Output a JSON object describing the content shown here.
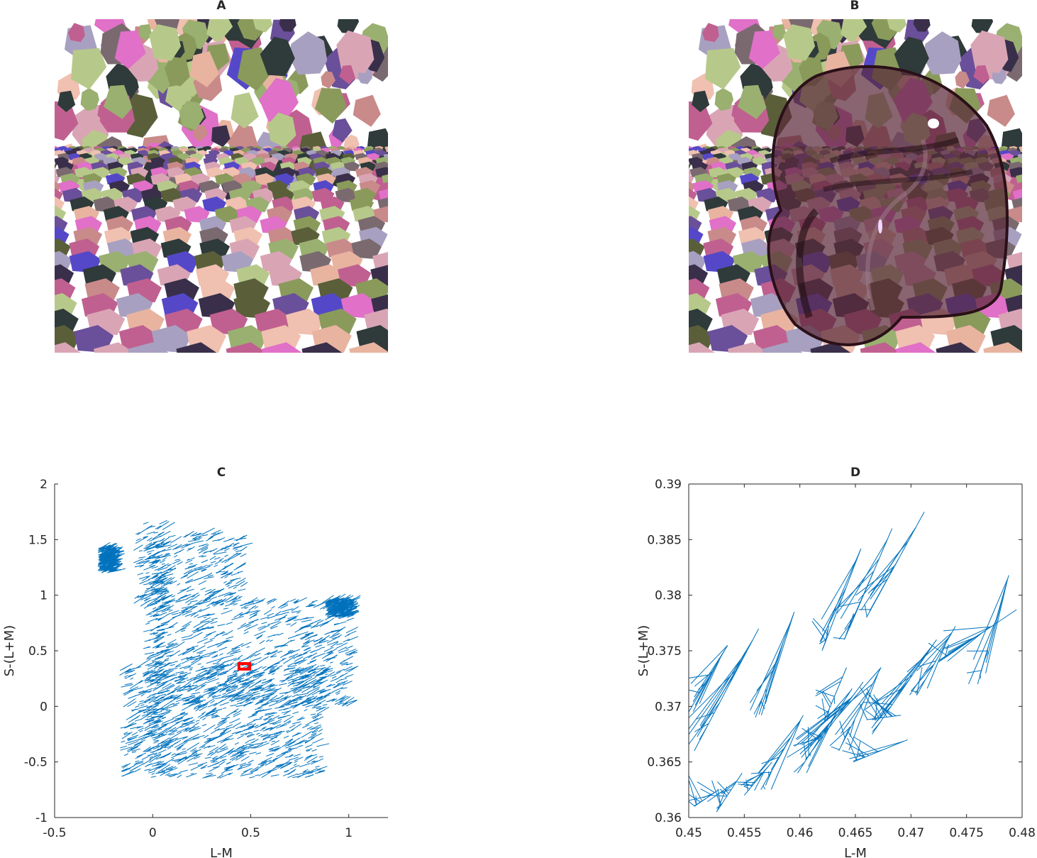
{
  "panels": {
    "a": {
      "title": "A"
    },
    "b": {
      "title": "B"
    }
  },
  "chart_data": [
    {
      "panel": "C",
      "type": "line",
      "title": "C",
      "xlabel": "L-M",
      "ylabel": "S-(L+M)",
      "xlim": [
        -0.5,
        1.2
      ],
      "ylim": [
        -1,
        2
      ],
      "xticks": [
        "-0.5",
        "0",
        "0.5",
        "1"
      ],
      "xtick_values": [
        -0.5,
        0,
        0.5,
        1
      ],
      "yticks": [
        "-1",
        "-0.5",
        "0",
        "0.5",
        "1",
        "1.5",
        "2"
      ],
      "ytick_values": [
        -1,
        -0.5,
        0,
        0.5,
        1,
        1.5,
        2
      ],
      "series_color": "#0072BD",
      "highlight_box": {
        "x": [
          0.44,
          0.495
        ],
        "y": [
          0.335,
          0.385
        ],
        "color": "#ff0000"
      },
      "clusters": [
        {
          "x": [
            -0.05,
            0.05
          ],
          "y": [
            -0.6,
            1.65
          ]
        },
        {
          "x": [
            -0.28,
            -0.2
          ],
          "y": [
            1.2,
            1.42
          ]
        },
        {
          "x": [
            -0.17,
            0.85
          ],
          "y": [
            -0.65,
            0.35
          ]
        },
        {
          "x": [
            0.0,
            1.0
          ],
          "y": [
            0.0,
            0.95
          ]
        },
        {
          "x": [
            0.88,
            1.0
          ],
          "y": [
            0.8,
            0.95
          ]
        },
        {
          "x": [
            -0.1,
            0.45
          ],
          "y": [
            0.9,
            1.55
          ]
        }
      ]
    },
    {
      "panel": "D",
      "type": "line",
      "title": "D",
      "xlabel": "L-M",
      "ylabel": "S-(L+M)",
      "xlim": [
        0.45,
        0.48
      ],
      "ylim": [
        0.36,
        0.39
      ],
      "xticks": [
        "0.45",
        "0.455",
        "0.46",
        "0.465",
        "0.47",
        "0.475",
        "0.48"
      ],
      "xtick_values": [
        0.45,
        0.455,
        0.46,
        0.465,
        0.47,
        0.475,
        0.48
      ],
      "yticks": [
        "0.36",
        "0.365",
        "0.37",
        "0.375",
        "0.38",
        "0.385",
        "0.39"
      ],
      "ytick_values": [
        0.36,
        0.365,
        0.37,
        0.375,
        0.38,
        0.385,
        0.39
      ],
      "series_color": "#0072BD",
      "segments": [
        [
          0.45,
          0.3695,
          0.4535,
          0.3755
        ],
        [
          0.4505,
          0.366,
          0.4563,
          0.377
        ],
        [
          0.456,
          0.369,
          0.4595,
          0.3785
        ],
        [
          0.462,
          0.375,
          0.4655,
          0.3842
        ],
        [
          0.464,
          0.376,
          0.4683,
          0.386
        ],
        [
          0.466,
          0.378,
          0.4712,
          0.3875
        ],
        [
          0.4705,
          0.371,
          0.474,
          0.3772
        ],
        [
          0.476,
          0.372,
          0.4788,
          0.3818
        ],
        [
          0.4725,
          0.374,
          0.4795,
          0.3787
        ],
        [
          0.4605,
          0.3652,
          0.4657,
          0.3722
        ],
        [
          0.4635,
          0.366,
          0.4673,
          0.3735
        ],
        [
          0.4665,
          0.3675,
          0.4723,
          0.376
        ],
        [
          0.4505,
          0.361,
          0.4527,
          0.3625
        ],
        [
          0.4525,
          0.3605,
          0.4548,
          0.364
        ],
        [
          0.455,
          0.362,
          0.4575,
          0.365
        ],
        [
          0.4565,
          0.3625,
          0.4603,
          0.3692
        ],
        [
          0.4598,
          0.364,
          0.4647,
          0.3716
        ],
        [
          0.4648,
          0.365,
          0.4697,
          0.367
        ],
        [
          0.466,
          0.3688,
          0.4691,
          0.3692
        ],
        [
          0.4622,
          0.3687,
          0.4642,
          0.3735
        ]
      ]
    }
  ]
}
